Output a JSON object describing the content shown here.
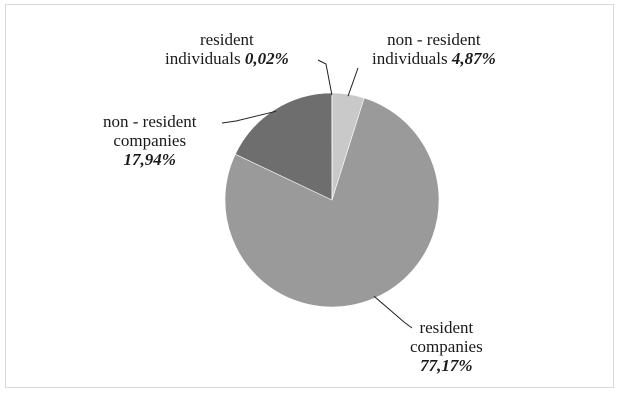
{
  "chart_data": {
    "type": "pie",
    "title": "",
    "start_angle_deg": 0,
    "direction": "clockwise",
    "slices": [
      {
        "line1": "non - resident",
        "line2": "individuals",
        "value": 4.87,
        "pct_label": "4,87%",
        "color": "#c9c9c9"
      },
      {
        "line1": "resident",
        "line2": "companies",
        "value": 77.17,
        "pct_label": "77,17%",
        "color": "#9a9a9a"
      },
      {
        "line1": "non - resident",
        "line2": "companies",
        "value": 17.94,
        "pct_label": "17,94%",
        "color": "#6e6e6e"
      },
      {
        "line1": "resident",
        "line2": "individuals",
        "value": 0.02,
        "pct_label": "0,02%",
        "color": "#3a3a3a"
      }
    ]
  }
}
